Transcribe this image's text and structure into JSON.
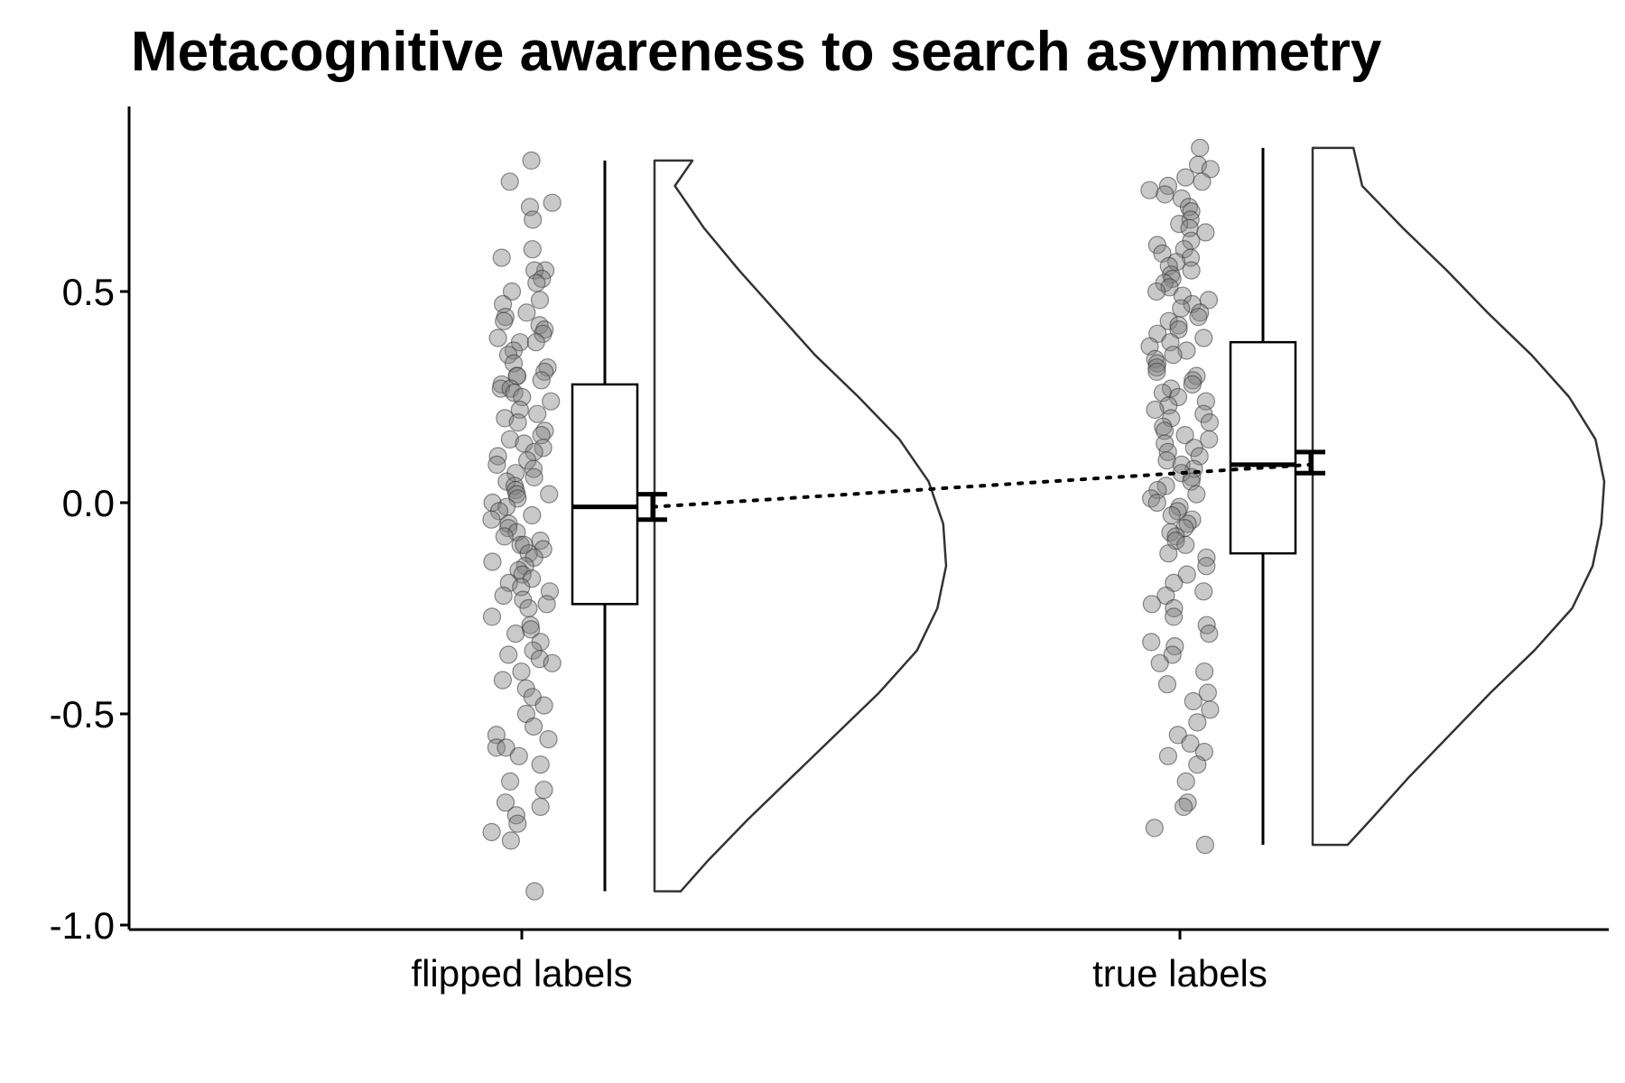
{
  "chart_data": {
    "type": "raincloud",
    "title": "Metacognitive awareness to search asymmetry",
    "xlabel": "",
    "ylabel": "",
    "categories": [
      "flipped labels",
      "true labels"
    ],
    "ylim": [
      -1.0,
      0.9
    ],
    "yticks": [
      -1.0,
      -0.5,
      0.0,
      0.5
    ],
    "ytick_labels": [
      "-1.0",
      "-0.5",
      "0.0",
      "0.5"
    ],
    "grid": false,
    "legend": "none",
    "colors": {
      "points": "#7f7f7f",
      "lines": "#000000",
      "violin": "#333333"
    },
    "groups": [
      {
        "name": "flipped labels",
        "box": {
          "min": -0.92,
          "q1": -0.24,
          "median": -0.01,
          "q3": 0.28,
          "max": 0.81
        },
        "mean": -0.01,
        "ci": [
          -0.04,
          0.02
        ],
        "density": {
          "y": [
            -0.92,
            -0.85,
            -0.75,
            -0.65,
            -0.55,
            -0.45,
            -0.35,
            -0.25,
            -0.15,
            -0.05,
            0.05,
            0.15,
            0.25,
            0.35,
            0.45,
            0.55,
            0.65,
            0.75,
            0.81
          ],
          "rel": [
            0.09,
            0.18,
            0.32,
            0.47,
            0.62,
            0.77,
            0.9,
            0.97,
            1.0,
            0.99,
            0.94,
            0.84,
            0.7,
            0.55,
            0.42,
            0.29,
            0.17,
            0.07,
            0.13
          ]
        },
        "points": [
          0.81,
          0.76,
          0.7,
          0.71,
          0.67,
          0.6,
          0.58,
          0.55,
          0.55,
          0.53,
          0.52,
          0.5,
          0.48,
          0.47,
          0.45,
          0.44,
          0.43,
          0.42,
          0.41,
          0.4,
          0.39,
          0.38,
          0.38,
          0.36,
          0.35,
          0.33,
          0.32,
          0.31,
          0.3,
          0.3,
          0.29,
          0.28,
          0.27,
          0.27,
          0.26,
          0.25,
          0.24,
          0.22,
          0.21,
          0.2,
          0.19,
          0.17,
          0.16,
          0.15,
          0.14,
          0.13,
          0.12,
          0.11,
          0.1,
          0.09,
          0.08,
          0.07,
          0.06,
          0.05,
          0.04,
          0.03,
          0.02,
          0.02,
          0.01,
          0.0,
          -0.01,
          -0.02,
          -0.03,
          -0.04,
          -0.05,
          -0.06,
          -0.07,
          -0.08,
          -0.09,
          -0.1,
          -0.1,
          -0.11,
          -0.12,
          -0.13,
          -0.14,
          -0.15,
          -0.16,
          -0.17,
          -0.18,
          -0.19,
          -0.2,
          -0.21,
          -0.22,
          -0.23,
          -0.24,
          -0.25,
          -0.27,
          -0.29,
          -0.3,
          -0.31,
          -0.33,
          -0.35,
          -0.36,
          -0.37,
          -0.38,
          -0.4,
          -0.42,
          -0.44,
          -0.46,
          -0.48,
          -0.5,
          -0.53,
          -0.55,
          -0.56,
          -0.58,
          -0.58,
          -0.6,
          -0.62,
          -0.66,
          -0.68,
          -0.71,
          -0.72,
          -0.74,
          -0.76,
          -0.78,
          -0.8,
          -0.92
        ]
      },
      {
        "name": "true labels",
        "box": {
          "min": -0.81,
          "q1": -0.12,
          "median": 0.09,
          "q3": 0.38,
          "max": 0.84
        },
        "mean": 0.09,
        "ci": [
          0.07,
          0.12
        ],
        "density": {
          "y": [
            -0.81,
            -0.75,
            -0.65,
            -0.55,
            -0.45,
            -0.35,
            -0.25,
            -0.15,
            -0.05,
            0.05,
            0.15,
            0.25,
            0.35,
            0.45,
            0.55,
            0.65,
            0.75,
            0.84
          ],
          "rel": [
            0.12,
            0.2,
            0.33,
            0.47,
            0.61,
            0.76,
            0.89,
            0.96,
            0.99,
            1.0,
            0.97,
            0.88,
            0.75,
            0.6,
            0.46,
            0.31,
            0.17,
            0.14
          ]
        },
        "points": [
          0.84,
          0.8,
          0.79,
          0.77,
          0.76,
          0.75,
          0.74,
          0.73,
          0.72,
          0.7,
          0.69,
          0.67,
          0.66,
          0.65,
          0.64,
          0.62,
          0.61,
          0.6,
          0.59,
          0.58,
          0.57,
          0.56,
          0.55,
          0.54,
          0.53,
          0.52,
          0.51,
          0.5,
          0.49,
          0.48,
          0.47,
          0.46,
          0.45,
          0.44,
          0.43,
          0.42,
          0.41,
          0.4,
          0.39,
          0.38,
          0.37,
          0.36,
          0.35,
          0.34,
          0.33,
          0.32,
          0.31,
          0.3,
          0.29,
          0.28,
          0.27,
          0.26,
          0.25,
          0.24,
          0.23,
          0.22,
          0.21,
          0.2,
          0.19,
          0.18,
          0.17,
          0.16,
          0.15,
          0.14,
          0.13,
          0.12,
          0.11,
          0.1,
          0.09,
          0.08,
          0.07,
          0.06,
          0.05,
          0.04,
          0.03,
          0.02,
          0.01,
          0.0,
          -0.01,
          -0.02,
          -0.03,
          -0.04,
          -0.05,
          -0.06,
          -0.07,
          -0.08,
          -0.09,
          -0.1,
          -0.12,
          -0.13,
          -0.15,
          -0.17,
          -0.19,
          -0.21,
          -0.22,
          -0.24,
          -0.25,
          -0.27,
          -0.29,
          -0.31,
          -0.33,
          -0.34,
          -0.36,
          -0.38,
          -0.4,
          -0.43,
          -0.45,
          -0.47,
          -0.49,
          -0.52,
          -0.55,
          -0.57,
          -0.59,
          -0.6,
          -0.62,
          -0.66,
          -0.71,
          -0.72,
          -0.77,
          -0.81
        ]
      }
    ]
  }
}
